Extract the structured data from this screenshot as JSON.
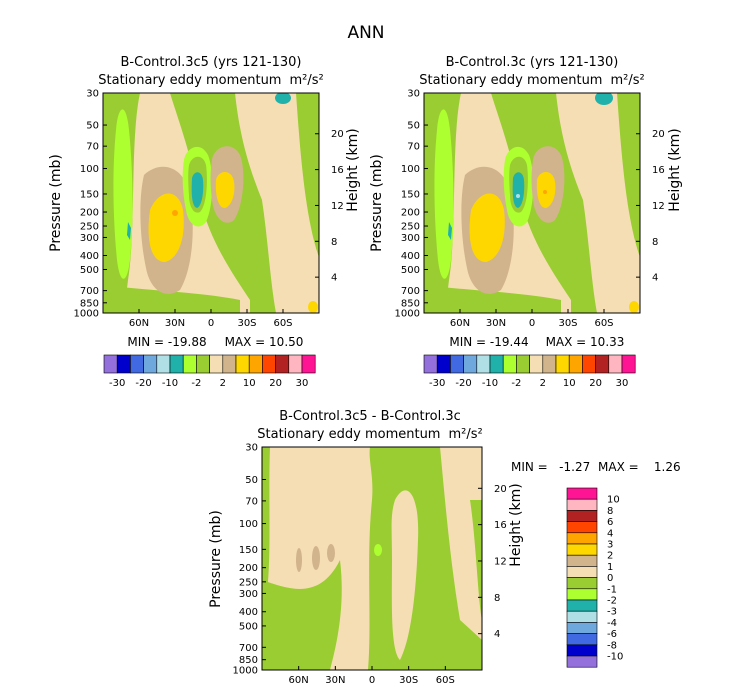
{
  "figure_title": "ANN",
  "colors": {
    "c1": "#9370db",
    "c2": "#0000cd",
    "c3": "#4169e1",
    "c4": "#6fa8dc",
    "c5": "#b0e0e6",
    "c6": "#20b2aa",
    "c7": "#adff2f",
    "c8": "#9acd32",
    "c9": "#f5deb3",
    "c10": "#d2b48c",
    "c11": "#ffd700",
    "c12": "#ffa500",
    "c13": "#ff4500",
    "c14": "#b22222",
    "c15": "#ffb6c1",
    "c16": "#ff1493"
  },
  "chart_data": [
    {
      "type": "heatmap",
      "title": "B-Control.3c5 (yrs 121-130)",
      "subtitle": "Stationary eddy momentum",
      "units": "m²/s²",
      "ylabel": "Pressure (mb)",
      "y2label": "Height (km)",
      "yticks": [
        "30",
        "50",
        "70",
        "100",
        "150",
        "200",
        "250",
        "300",
        "400",
        "500",
        "700",
        "850",
        "1000"
      ],
      "y2ticks": [
        "20",
        "16",
        "12",
        "8",
        "4"
      ],
      "xticks": [
        "60N",
        "30N",
        "0",
        "30S",
        "60S"
      ],
      "min_label": "MIN = -19.88",
      "max_label": "MAX = 10.50",
      "min": -19.88,
      "max": 10.5,
      "colorbar_levels": [
        "-30",
        "-20",
        "-10",
        "-2",
        "2",
        "10",
        "20",
        "30"
      ]
    },
    {
      "type": "heatmap",
      "title": "B-Control.3c (yrs 121-130)",
      "subtitle": "Stationary eddy momentum",
      "units": "m²/s²",
      "ylabel": "Pressure (mb)",
      "y2label": "Height (km)",
      "yticks": [
        "30",
        "50",
        "70",
        "100",
        "150",
        "200",
        "250",
        "300",
        "400",
        "500",
        "700",
        "850",
        "1000"
      ],
      "y2ticks": [
        "20",
        "16",
        "12",
        "8",
        "4"
      ],
      "xticks": [
        "60N",
        "30N",
        "0",
        "30S",
        "60S"
      ],
      "min_label": "MIN = -19.44",
      "max_label": "MAX = 10.33",
      "min": -19.44,
      "max": 10.33,
      "colorbar_levels": [
        "-30",
        "-20",
        "-10",
        "-2",
        "2",
        "10",
        "20",
        "30"
      ]
    },
    {
      "type": "heatmap",
      "title": "B-Control.3c5 - B-Control.3c",
      "subtitle": "Stationary eddy momentum",
      "units": "m²/s²",
      "ylabel": "Pressure (mb)",
      "y2label": "Height (km)",
      "yticks": [
        "30",
        "50",
        "70",
        "100",
        "150",
        "200",
        "250",
        "300",
        "400",
        "500",
        "700",
        "850",
        "1000"
      ],
      "y2ticks": [
        "20",
        "16",
        "12",
        "8",
        "4"
      ],
      "xticks": [
        "60N",
        "30N",
        "0",
        "30S",
        "60S"
      ],
      "min_label": "MIN =   -1.27",
      "max_label": "MAX =    1.26",
      "min": -1.27,
      "max": 1.26,
      "colorbar_levels": [
        "10",
        "8",
        "6",
        "4",
        "3",
        "2",
        "1",
        "0",
        "-1",
        "-2",
        "-3",
        "-4",
        "-6",
        "-8",
        "-10"
      ]
    }
  ]
}
